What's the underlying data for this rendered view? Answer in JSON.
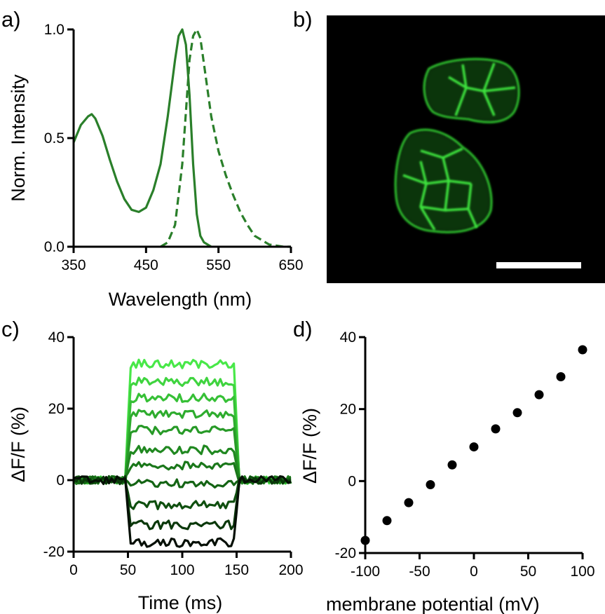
{
  "chart_data": [
    {
      "panel": "a)",
      "type": "line",
      "xlabel": "Wavelength (nm)",
      "ylabel": "Norm. Intensity",
      "xlim": [
        350,
        650
      ],
      "ylim": [
        0.0,
        1.0
      ],
      "xticks": [
        "350",
        "450",
        "550",
        "650"
      ],
      "yticks": [
        "0.0",
        "0.5",
        "1.0"
      ],
      "color": "#2a7f2a",
      "series": [
        {
          "style": "solid",
          "x": [
            350,
            360,
            370,
            375,
            380,
            390,
            400,
            410,
            420,
            430,
            440,
            450,
            460,
            470,
            480,
            490,
            495,
            500,
            505,
            510,
            515,
            520,
            525,
            530,
            540
          ],
          "y": [
            0.48,
            0.56,
            0.6,
            0.61,
            0.59,
            0.51,
            0.4,
            0.3,
            0.22,
            0.17,
            0.16,
            0.18,
            0.26,
            0.38,
            0.6,
            0.86,
            0.97,
            1.0,
            0.93,
            0.7,
            0.38,
            0.15,
            0.05,
            0.02,
            0.0
          ]
        },
        {
          "style": "dashed",
          "x": [
            470,
            480,
            490,
            500,
            505,
            510,
            515,
            520,
            525,
            530,
            540,
            550,
            560,
            570,
            580,
            590,
            600,
            610,
            620,
            630,
            640,
            650
          ],
          "y": [
            0.0,
            0.02,
            0.1,
            0.38,
            0.62,
            0.86,
            0.97,
            1.0,
            0.96,
            0.84,
            0.6,
            0.44,
            0.33,
            0.24,
            0.16,
            0.1,
            0.05,
            0.03,
            0.01,
            0.005,
            0.0,
            0.0
          ]
        }
      ]
    },
    {
      "panel": "b)",
      "type": "image"
    },
    {
      "panel": "c)",
      "type": "line",
      "xlabel": "Time (ms)",
      "ylabel": "ΔF/F  (%)",
      "xlim": [
        0,
        200
      ],
      "ylim": [
        -20,
        40
      ],
      "xticks": [
        "0",
        "50",
        "100",
        "150",
        "200"
      ],
      "yticks": [
        "-20",
        "0",
        "20",
        "40"
      ],
      "step_start": 50,
      "step_end": 150,
      "series": [
        {
          "plateau": 32.5,
          "color": "#48e848"
        },
        {
          "plateau": 27.5,
          "color": "#3fd43f"
        },
        {
          "plateau": 23.0,
          "color": "#36c036"
        },
        {
          "plateau": 18.5,
          "color": "#2eac2e"
        },
        {
          "plateau": 14.0,
          "color": "#279a27"
        },
        {
          "plateau": 8.5,
          "color": "#208820"
        },
        {
          "plateau": 4.0,
          "color": "#1a771a"
        },
        {
          "plateau": -1.0,
          "color": "#146414"
        },
        {
          "plateau": -7.0,
          "color": "#0f4f0f"
        },
        {
          "plateau": -12.5,
          "color": "#0a380a"
        },
        {
          "plateau": -17.5,
          "color": "#050f05"
        }
      ]
    },
    {
      "panel": "d)",
      "type": "scatter",
      "xlabel": "membrane potential (mV)",
      "ylabel": "ΔF/F  (%)",
      "xlim": [
        -100,
        100
      ],
      "ylim": [
        -20,
        40
      ],
      "xticks": [
        "-100",
        "-50",
        "0",
        "50",
        "100"
      ],
      "yticks": [
        "-20",
        "0",
        "20",
        "40"
      ],
      "x": [
        -100,
        -80,
        -60,
        -40,
        -20,
        0,
        20,
        40,
        60,
        80,
        100
      ],
      "y": [
        -16.5,
        -11,
        -6,
        -1,
        4.5,
        9.5,
        14.5,
        19,
        24,
        29,
        36.5
      ]
    }
  ]
}
